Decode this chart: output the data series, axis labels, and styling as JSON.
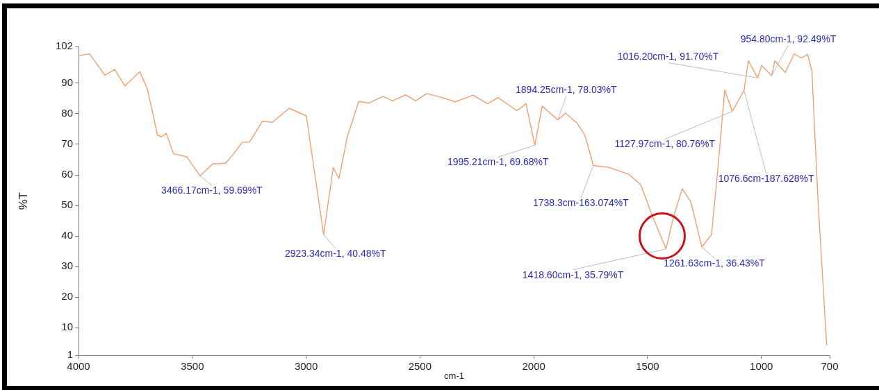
{
  "chart_data": {
    "type": "line",
    "xlabel": "cm-1",
    "ylabel": "%T",
    "color": "#f0a070",
    "marker": "none",
    "grid": false,
    "x": [
      4000,
      3952,
      3884,
      3841,
      3796,
      3731,
      3697,
      3653,
      3634,
      3615,
      3582,
      3524,
      3466.17,
      3411,
      3354,
      3323,
      3280,
      3249,
      3192,
      3148,
      3075,
      2999,
      2923.34,
      2881,
      2856,
      2819,
      2769,
      2725,
      2663,
      2620,
      2563,
      2519,
      2470,
      2401,
      2345,
      2267,
      2202,
      2157,
      2074,
      2034,
      1995.21,
      1963,
      1894.25,
      1860,
      1808,
      1775,
      1738.3,
      1672,
      1582,
      1530,
      1478,
      1418.6,
      1387,
      1348,
      1310,
      1261.63,
      1219,
      1193,
      1161,
      1127.97,
      1076.6,
      1057,
      1016.2,
      999,
      954.8,
      941,
      895,
      856,
      824,
      797,
      778,
      751,
      713
    ],
    "values": [
      99,
      99.6,
      92.6,
      94.5,
      89.1,
      93.8,
      88,
      73,
      72.5,
      73.6,
      66.9,
      65.9,
      59.69,
      63.6,
      63.8,
      66.5,
      70.7,
      70.7,
      77.5,
      77.2,
      81.8,
      79.3,
      40.48,
      62.4,
      58.8,
      72.5,
      84,
      83.5,
      85.7,
      84.2,
      86.2,
      84.2,
      86.6,
      85.3,
      83.9,
      86.1,
      83.3,
      85.3,
      81,
      83.3,
      69.68,
      82.5,
      78.03,
      80.2,
      76.8,
      73,
      63.074,
      62.5,
      60.2,
      56.8,
      46.4,
      35.79,
      46,
      55.5,
      51.2,
      36.43,
      40.5,
      60.6,
      87.8,
      80.76,
      87.628,
      97.3,
      91.7,
      95.8,
      92.49,
      97.3,
      93.5,
      99.6,
      98.2,
      99.4,
      93.9,
      51.2,
      4.2
    ],
    "xlim": [
      4000,
      700
    ],
    "xticks": [
      4000,
      3500,
      3000,
      2500,
      2000,
      1500,
      1000,
      700
    ],
    "ylim": [
      1,
      102
    ],
    "yticks": [
      1,
      10,
      20,
      30,
      40,
      50,
      60,
      70,
      80,
      90,
      102
    ],
    "annotations": [
      {
        "text": "3466.17cm-1, 59.69%T",
        "x": 3466.17,
        "y": 59.69
      },
      {
        "text": "2923.34cm-1, 40.48%T",
        "x": 2923.34,
        "y": 40.48
      },
      {
        "text": "1995.21cm-1, 69.68%T",
        "x": 1995.21,
        "y": 69.68
      },
      {
        "text": "1894.25cm-1, 78.03%T",
        "x": 1894.25,
        "y": 78.03
      },
      {
        "text": "1738.3cm-163.074%T",
        "x": 1738.3,
        "y": 63.074
      },
      {
        "text": "1418.60cm-1, 35.79%T",
        "x": 1418.6,
        "y": 35.79
      },
      {
        "text": "1261.63cm-1, 36.43%T",
        "x": 1261.63,
        "y": 36.43
      },
      {
        "text": "1127.97cm-1, 80.76%T",
        "x": 1127.97,
        "y": 80.76
      },
      {
        "text": "1076.6cm-187.628%T",
        "x": 1076.6,
        "y": 87.628
      },
      {
        "text": "1016.20cm-1, 91.70%T",
        "x": 1016.2,
        "y": 91.7
      },
      {
        "text": "954.80cm-1, 92.49%T",
        "x": 954.8,
        "y": 92.49
      }
    ]
  }
}
